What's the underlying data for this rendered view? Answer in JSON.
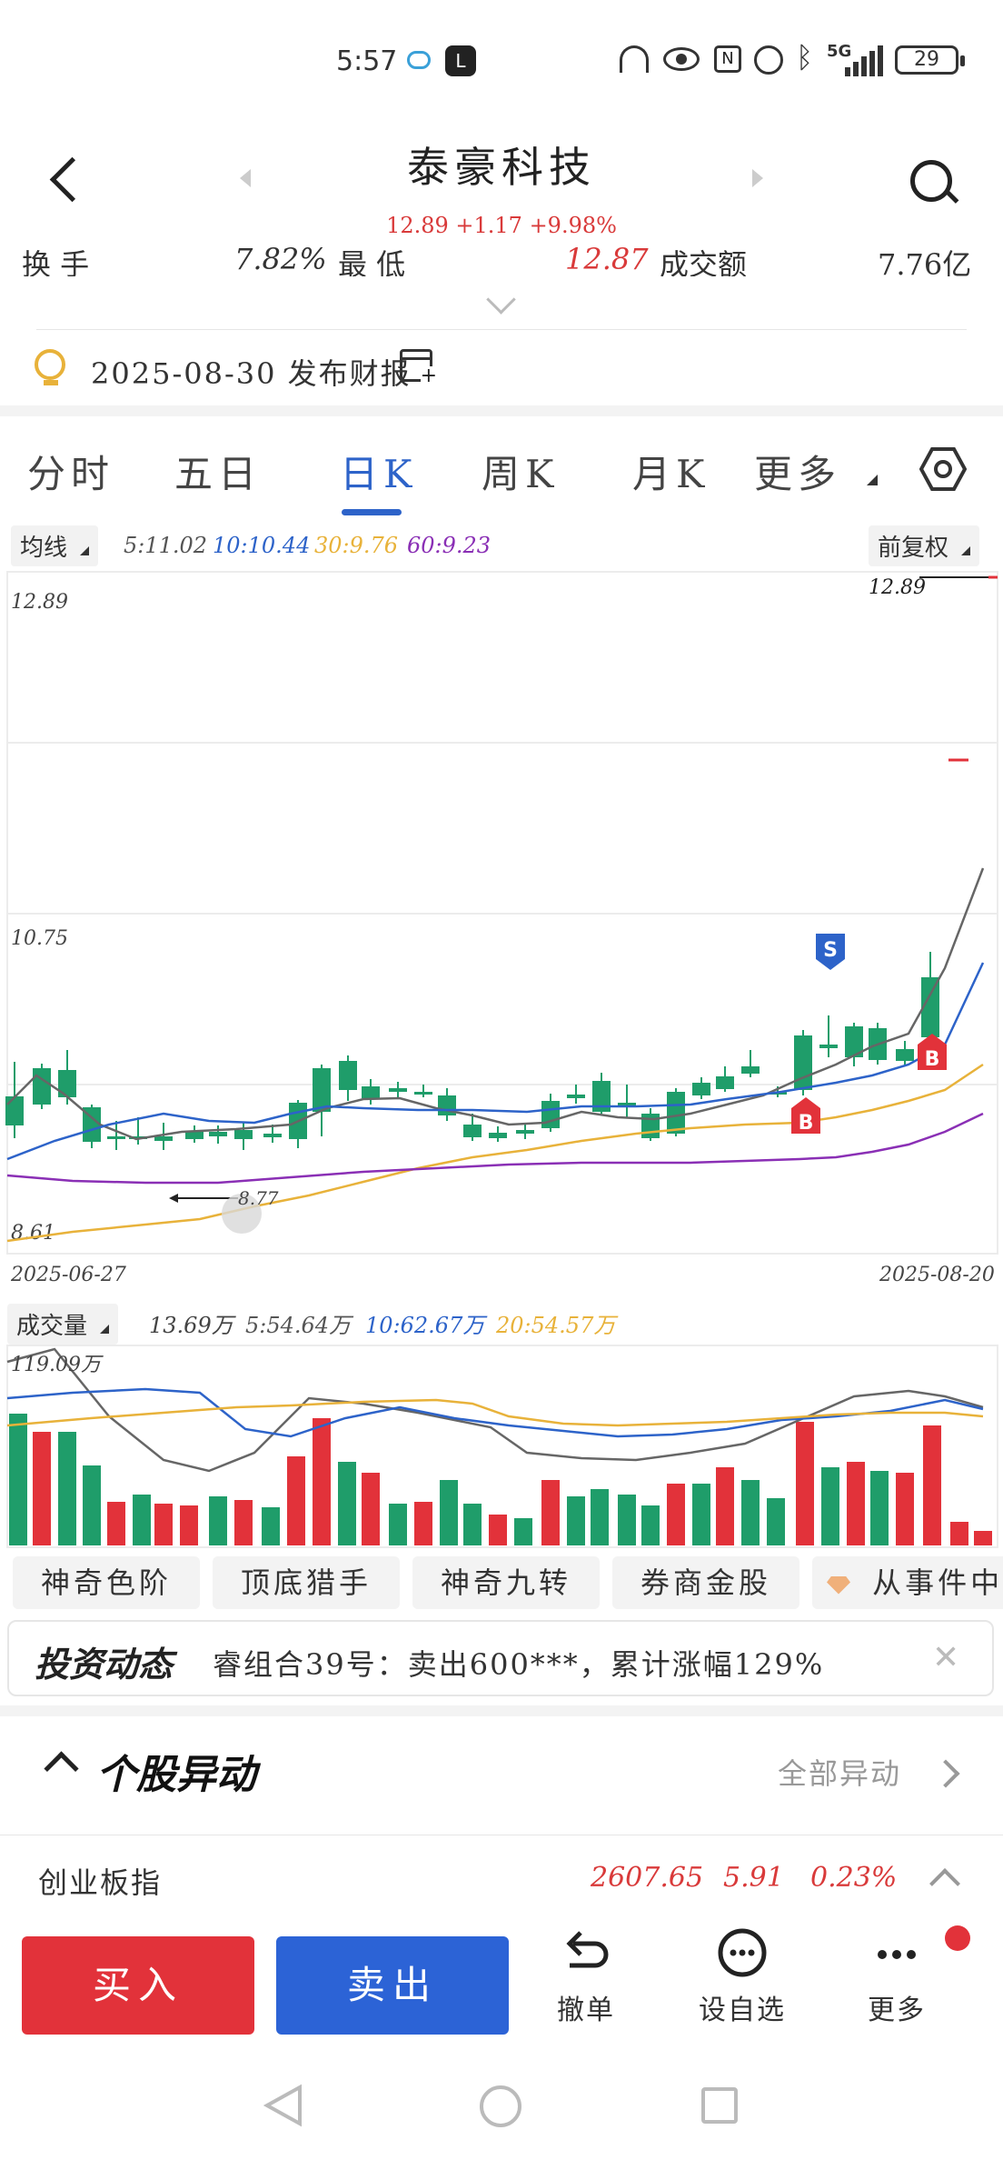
{
  "status_bar": {
    "time": "5:57",
    "battery": "29",
    "network": "5G"
  },
  "header": {
    "title": "泰豪科技",
    "quote": "12.89  +1.17  +9.98%"
  },
  "info_partial": {
    "left": "换  手",
    "mid_val": "7.82%",
    "mid_label": "最  低",
    "right_val": "12.87",
    "right_label": "成交额",
    "far_right": "7.76亿"
  },
  "earnings": {
    "date_text": "2025-08-30 发布财报"
  },
  "tabs": {
    "t1": "分时",
    "t2": "五日",
    "t3": "日K",
    "t4": "周K",
    "t5": "月K",
    "t6": "更多"
  },
  "ma_bar": {
    "label": "均线",
    "ma5": "5:11.02",
    "ma10": "10:10.44",
    "ma30": "30:9.76",
    "ma60": "60:9.23",
    "adjust": "前复权"
  },
  "kline": {
    "y_high": "12.89",
    "y_mid": "10.75",
    "y_low": "8.61",
    "marker_high": "12.89",
    "marker_low": "8.77",
    "date_start": "2025-06-27",
    "date_end": "2025-08-20",
    "sell_marker": "S",
    "buy_marker": "B",
    "colors": {
      "up": "#e2323a",
      "down": "#1f9d6a",
      "ma5": "#666666",
      "ma10": "#2d63c9",
      "ma30": "#e8b23a",
      "ma60": "#8a2fb5"
    }
  },
  "volume": {
    "label": "成交量",
    "v_main": "13.69万",
    "v5": "5:54.64万",
    "v10": "10:62.67万",
    "v20": "20:54.57万",
    "max_label": "119.09万"
  },
  "chips": {
    "c1": "神奇色阶",
    "c2": "顶底猎手",
    "c3": "神奇九转",
    "c4": "券商金股",
    "c5": "从事件中"
  },
  "news": {
    "brand": "投资动态",
    "text": "睿组合39号：卖出600***，累计涨幅129%"
  },
  "section": {
    "title": "个股异动",
    "link": "全部异动"
  },
  "index_row": {
    "name": "创业板指",
    "value": "2607.65",
    "change": "5.91",
    "pct": "0.23%"
  },
  "bottom_nav": {
    "buy": "买入",
    "sell": "卖出",
    "cancel": "撤单",
    "watch": "设自选",
    "more": "更多"
  }
}
